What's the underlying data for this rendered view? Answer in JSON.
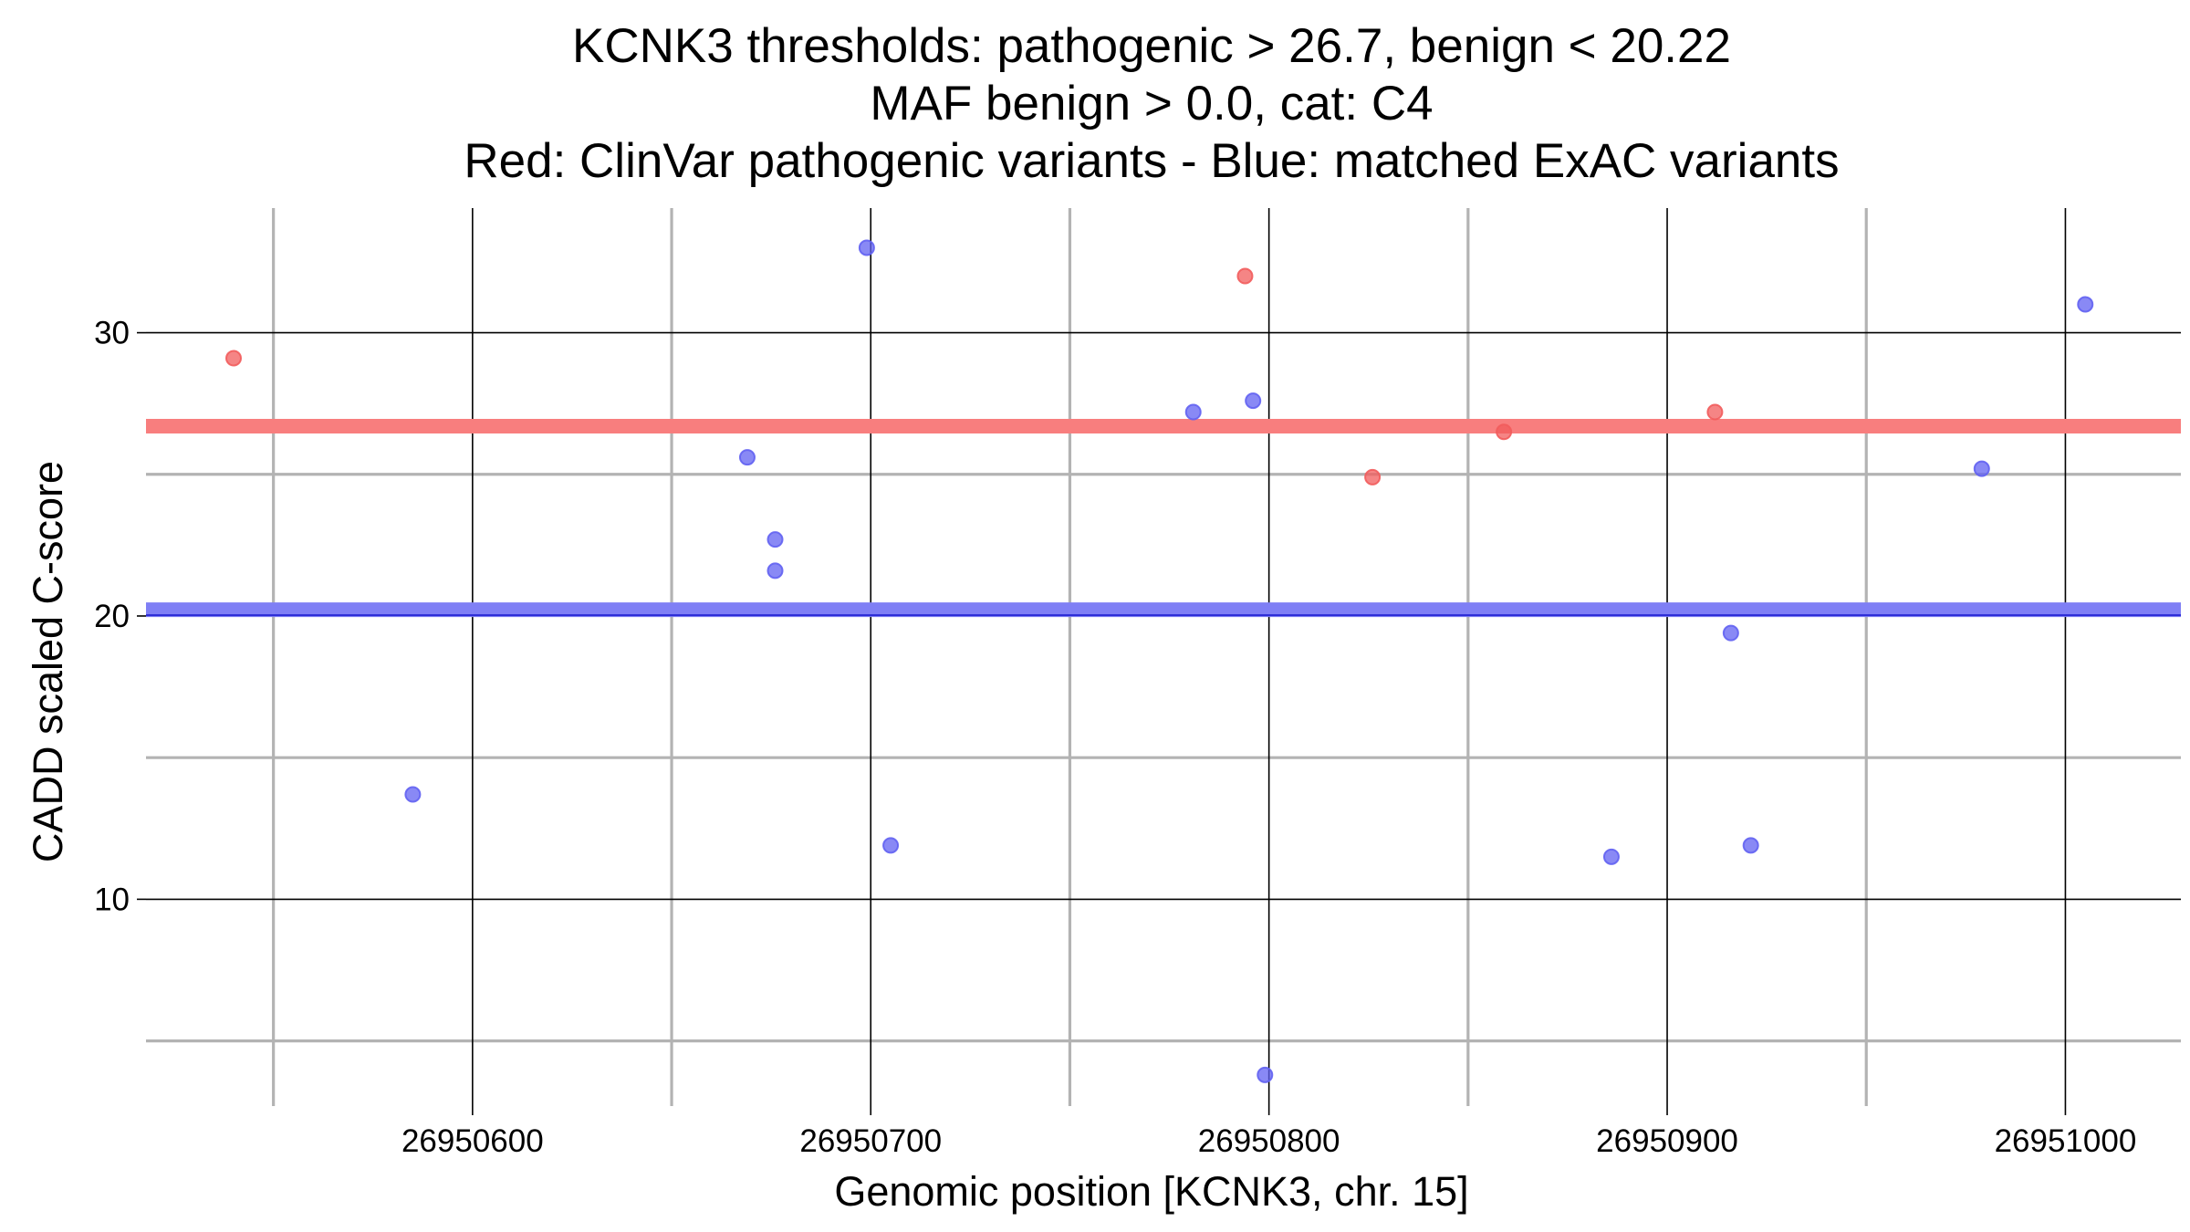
{
  "chart_data": {
    "type": "scatter",
    "title_lines": [
      "KCNK3 thresholds: pathogenic > 26.7, benign < 20.22",
      "MAF benign > 0.0, cat: C4",
      "Red: ClinVar pathogenic variants - Blue: matched ExAC variants"
    ],
    "xlabel": "Genomic position [KCNK3, chr. 15]",
    "ylabel": "CADD scaled C-score",
    "xlim": [
      26950518,
      26951029
    ],
    "ylim": [
      2.7,
      34.4
    ],
    "x_major_ticks": [
      26950600,
      26950700,
      26950800,
      26950900,
      26951000
    ],
    "x_minor_ticks": [
      26950550,
      26950650,
      26950750,
      26950850,
      26950950
    ],
    "y_major_ticks": [
      10,
      20,
      30
    ],
    "y_minor_ticks": [
      5,
      15,
      25
    ],
    "x_tick_labels": [
      "26950600",
      "26950700",
      "26950800",
      "26950900",
      "26951000"
    ],
    "y_tick_labels": [
      "10",
      "20",
      "30"
    ],
    "thresholds": [
      {
        "name": "pathogenic",
        "value": 26.7,
        "color": "#f87e7e"
      },
      {
        "name": "benign",
        "value": 20.22,
        "color": "#7f7ff5"
      }
    ],
    "series": [
      {
        "name": "ClinVar pathogenic variants",
        "color": "#f25c5c",
        "points": [
          {
            "x": 26950540,
            "y": 29.1
          },
          {
            "x": 26950794,
            "y": 32.0
          },
          {
            "x": 26950826,
            "y": 24.9
          },
          {
            "x": 26950859,
            "y": 26.5
          },
          {
            "x": 26950912,
            "y": 27.2
          }
        ]
      },
      {
        "name": "matched ExAC variants",
        "color": "#6262f2",
        "points": [
          {
            "x": 26950585,
            "y": 13.7
          },
          {
            "x": 26950669,
            "y": 25.6
          },
          {
            "x": 26950676,
            "y": 22.7
          },
          {
            "x": 26950676,
            "y": 21.6
          },
          {
            "x": 26950699,
            "y": 33.0
          },
          {
            "x": 26950705,
            "y": 11.9
          },
          {
            "x": 26950781,
            "y": 27.2
          },
          {
            "x": 26950796,
            "y": 27.6
          },
          {
            "x": 26950799,
            "y": 3.8
          },
          {
            "x": 26950886,
            "y": 11.5
          },
          {
            "x": 26950916,
            "y": 19.4
          },
          {
            "x": 26950921,
            "y": 11.9
          },
          {
            "x": 26950979,
            "y": 25.2
          },
          {
            "x": 26951005,
            "y": 31.0
          }
        ]
      }
    ]
  }
}
